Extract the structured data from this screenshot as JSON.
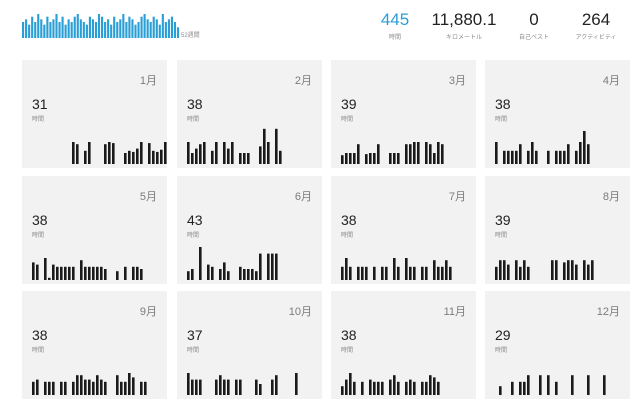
{
  "summary": {
    "weeks_label": "52週間",
    "weekly_bar_color": "#2a9fd6",
    "weekly_values": [
      6,
      7,
      5,
      8,
      6,
      9,
      7,
      5,
      8,
      6,
      7,
      9,
      6,
      8,
      5,
      7,
      6,
      8,
      9,
      7,
      6,
      5,
      8,
      7,
      6,
      9,
      8,
      6,
      7,
      5,
      8,
      6,
      7,
      9,
      6,
      8,
      7,
      5,
      6,
      8,
      9,
      7,
      6,
      8,
      7,
      5,
      9,
      6,
      7,
      8,
      6,
      4
    ],
    "stats": [
      {
        "value": "445",
        "label": "時間",
        "accent": true
      },
      {
        "value": "11,880.1",
        "label": "キロメートル",
        "accent": false
      },
      {
        "value": "0",
        "label": "自己ベスト",
        "accent": false
      },
      {
        "value": "264",
        "label": "アクティビティ",
        "accent": false
      }
    ]
  },
  "months": [
    {
      "month": "1月",
      "value": "31",
      "label": "時間",
      "bars": [
        0,
        0,
        0,
        0,
        0,
        0,
        0,
        0,
        0,
        0,
        1,
        0.9,
        0,
        0.6,
        1,
        0,
        0,
        0,
        0.9,
        1,
        0.95,
        0,
        0,
        0.5,
        0.6,
        0.55,
        0.7,
        1,
        0,
        0.95,
        0.6,
        0.55,
        0.65,
        1,
        0
      ]
    },
    {
      "month": "2月",
      "value": "38",
      "label": "時間",
      "bars": [
        1,
        0.5,
        0.7,
        0.9,
        1,
        0,
        0.6,
        1,
        0,
        1,
        0.7,
        1,
        0,
        0.5,
        0.5,
        0.5,
        0,
        0,
        0.8,
        1.6,
        1,
        0,
        1.6,
        0.6,
        0
      ]
    },
    {
      "month": "3月",
      "value": "39",
      "label": "時間",
      "bars": [
        0.4,
        0.5,
        0.5,
        0.5,
        0.9,
        0,
        0.45,
        0.5,
        0.5,
        0.9,
        0,
        0,
        0.5,
        0.5,
        0.5,
        0,
        0.9,
        0.9,
        1,
        1,
        0,
        1,
        0.9,
        0.5,
        1,
        0.9,
        0
      ]
    },
    {
      "month": "4月",
      "value": "38",
      "label": "時間",
      "bars": [
        1,
        0,
        0.6,
        0.6,
        0.6,
        0.6,
        0.9,
        0,
        0.6,
        1,
        0.6,
        0,
        0,
        0.6,
        0,
        0.6,
        0.6,
        0.6,
        0.9,
        0,
        0.6,
        1,
        1.5,
        0.9,
        0
      ]
    },
    {
      "month": "5月",
      "value": "38",
      "label": "時間",
      "bars": [
        0.8,
        0.7,
        0,
        1,
        0.1,
        0.7,
        0.6,
        0.6,
        0.6,
        0.6,
        0.6,
        0,
        0.9,
        0.6,
        0.6,
        0.6,
        0.6,
        0.6,
        0.5,
        0,
        0,
        0.4,
        0,
        0.6,
        0,
        0.6,
        0.6,
        0.5
      ]
    },
    {
      "month": "6月",
      "value": "43",
      "label": "時間",
      "bars": [
        0.4,
        0.5,
        0,
        1.5,
        0,
        0.7,
        0.6,
        0,
        0.5,
        0.8,
        0.4,
        0,
        0,
        0.6,
        0.5,
        0.5,
        0.5,
        0.4,
        1.2,
        0,
        1.2,
        1.2,
        1.2
      ]
    },
    {
      "month": "7月",
      "value": "38",
      "label": "時間",
      "bars": [
        0.6,
        1,
        0.6,
        0,
        0.6,
        0.6,
        0.6,
        0,
        0.6,
        0,
        0.6,
        0.6,
        0,
        1,
        0.6,
        0,
        1,
        0.6,
        0.6,
        0,
        0.6,
        0.6,
        0,
        0.9,
        0.6,
        0.6,
        0.9,
        0.6
      ]
    },
    {
      "month": "8月",
      "value": "39",
      "label": "時間",
      "bars": [
        0.6,
        0.9,
        0.9,
        0.7,
        0,
        0.9,
        0.6,
        0.9,
        0.6,
        0,
        0,
        0,
        0,
        0,
        0.9,
        0.9,
        0,
        0.8,
        0.9,
        0.9,
        0.7,
        0,
        0.9,
        0.7,
        0.9
      ]
    },
    {
      "month": "9月",
      "value": "38",
      "label": "時間",
      "bars": [
        0.6,
        0.7,
        0,
        0.6,
        0.6,
        0.6,
        0,
        0.6,
        0.6,
        0,
        0.6,
        0.9,
        0.9,
        0.7,
        0.7,
        0.6,
        0.9,
        0.7,
        0.6,
        0,
        0,
        0.9,
        0.6,
        0.6,
        1,
        0.8,
        0,
        0.6,
        0.6
      ]
    },
    {
      "month": "10月",
      "value": "37",
      "label": "時間",
      "bars": [
        1,
        0.7,
        0.7,
        0.7,
        0,
        0,
        0,
        0.7,
        0.9,
        0.7,
        0.7,
        0,
        0.7,
        0.7,
        0,
        0,
        0,
        0.7,
        0.5,
        0,
        0,
        0.7,
        0.9,
        0,
        0,
        0,
        0,
        1,
        0
      ]
    },
    {
      "month": "11月",
      "value": "38",
      "label": "時間",
      "bars": [
        0.4,
        0.7,
        1,
        0.6,
        0,
        0.6,
        0,
        0.7,
        0.6,
        0.6,
        0.6,
        0,
        0.7,
        0.9,
        0.6,
        0,
        0.6,
        0.7,
        0.6,
        0,
        0.6,
        0.6,
        0.9,
        0.8,
        0.6
      ]
    },
    {
      "month": "12月",
      "value": "29",
      "label": "時間",
      "bars": [
        0,
        0.4,
        0,
        0,
        0.6,
        0,
        0.6,
        0.6,
        0.9,
        0,
        0,
        0.9,
        0,
        0.9,
        0,
        0.6,
        0,
        0,
        0,
        0.9,
        0,
        0,
        0,
        0.9,
        0,
        0,
        0,
        0.9,
        0
      ]
    }
  ],
  "bar_color": "#1a1a1a"
}
